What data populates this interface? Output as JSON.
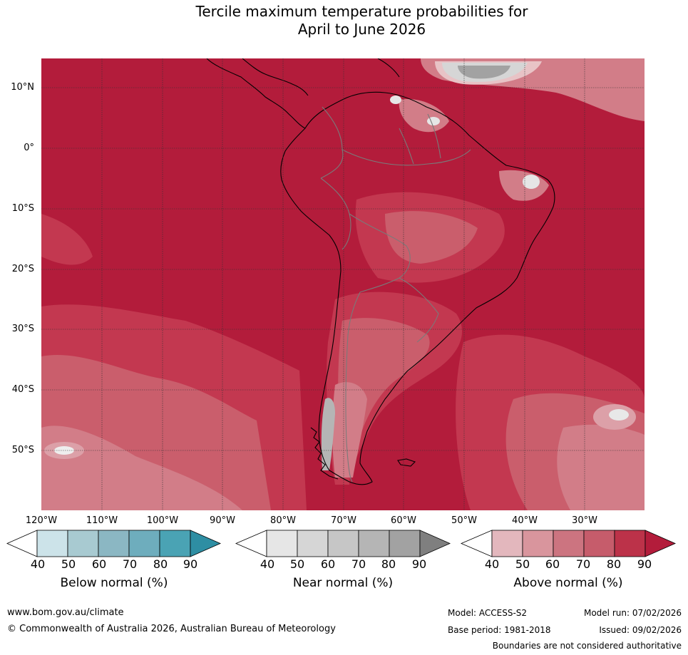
{
  "title": {
    "line1": "Tercile maximum temperature probabilities for",
    "line2": "April to June 2026"
  },
  "map": {
    "region": "South America",
    "latitude_labels": [
      "10°N",
      "0°",
      "10°S",
      "20°S",
      "30°S",
      "40°S",
      "50°S"
    ],
    "longitude_labels": [
      "120°W",
      "110°W",
      "100°W",
      "90°W",
      "80°W",
      "70°W",
      "60°W",
      "50°W",
      "40°W",
      "30°W"
    ],
    "dominant_category": "Above normal",
    "colors": {
      "above_90": "#b31c3b",
      "above_80": "#c33850",
      "above_70": "#ca5e6c",
      "above_60": "#d27d88",
      "above_50": "#dca0a8",
      "above_40": "#e8c3c6",
      "near_50": "#d6d6d6",
      "near_70": "#b5b5b5",
      "near_80": "#a2a2a2",
      "grid": "#333333",
      "coast": "#000000",
      "border": "#7a7a7a"
    }
  },
  "colorbars": [
    {
      "title": "Below normal (%)",
      "ticks": [
        "40",
        "50",
        "60",
        "70",
        "80",
        "90"
      ],
      "colors": [
        "#ffffff",
        "#cce3e9",
        "#a8cad1",
        "#8bb7c3",
        "#6eadbd",
        "#4aa3b4",
        "#2e8ea3"
      ]
    },
    {
      "title": "Near normal (%)",
      "ticks": [
        "40",
        "50",
        "60",
        "70",
        "80",
        "90"
      ],
      "colors": [
        "#ffffff",
        "#e6e6e6",
        "#d6d6d6",
        "#c6c6c6",
        "#b5b5b5",
        "#a2a2a2",
        "#7f7f7f"
      ]
    },
    {
      "title": "Above normal (%)",
      "ticks": [
        "40",
        "50",
        "60",
        "70",
        "80",
        "90"
      ],
      "colors": [
        "#ffffff",
        "#e3b7bd",
        "#d9959d",
        "#cc7480",
        "#c65c6b",
        "#bc3249",
        "#b31c3b"
      ]
    }
  ],
  "footer": {
    "website": "www.bom.gov.au/climate",
    "copyright": "© Commonwealth of Australia 2026, Australian Bureau of Meteorology",
    "model": "Model: ACCESS-S2",
    "model_run": "Model run: 07/02/2026",
    "base_period": "Base period: 1981-2018",
    "issued": "Issued: 09/02/2026",
    "disclaimer": "Boundaries are not considered authoritative"
  }
}
